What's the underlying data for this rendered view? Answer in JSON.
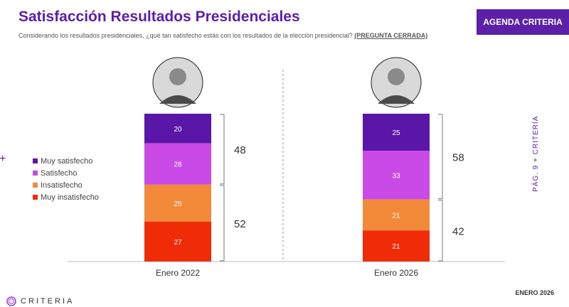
{
  "header": {
    "title": "Satisfacción Resultados Presidenciales",
    "subtitle": "Considerando los resultados presidenciales, ¿qué tan satisfecho estás con los resultados de la elección presidencial?",
    "subtitle_tag": "(PREGUNTA CERRADA)",
    "agenda_label": "AGENDA CRITERIA"
  },
  "side": {
    "text": "PÁG. 9 + CRITERIA"
  },
  "footer": {
    "logo": "CRITERIA",
    "date": "ENERO 2026"
  },
  "colors": {
    "muy_satisfecho": "#5a16a6",
    "satisfecho": "#c94ae6",
    "insatisfecho": "#f28a3a",
    "muy_insatisfecho": "#ef2c07",
    "brand": "#5b1fa8"
  },
  "legend": [
    {
      "label": "Muy satisfecho",
      "color": "#5a16a6"
    },
    {
      "label": "Satisfecho",
      "color": "#c94ae6"
    },
    {
      "label": "Insatisfecho",
      "color": "#f28a3a"
    },
    {
      "label": "Muy insatisfecho",
      "color": "#ef2c07"
    }
  ],
  "chart_data": {
    "type": "bar",
    "stacked": true,
    "categories": [
      "Enero 2022",
      "Enero 2026"
    ],
    "series": [
      {
        "name": "Muy satisfecho",
        "values": [
          20,
          25
        ]
      },
      {
        "name": "Satisfecho",
        "values": [
          28,
          33
        ]
      },
      {
        "name": "Insatisfecho",
        "values": [
          25,
          21
        ]
      },
      {
        "name": "Muy insatisfecho",
        "values": [
          27,
          21
        ]
      }
    ],
    "totals": {
      "satisfied": [
        48,
        58
      ],
      "unsatisfied": [
        52,
        42
      ]
    },
    "ylim": [
      0,
      100
    ],
    "legend_position": "left"
  }
}
